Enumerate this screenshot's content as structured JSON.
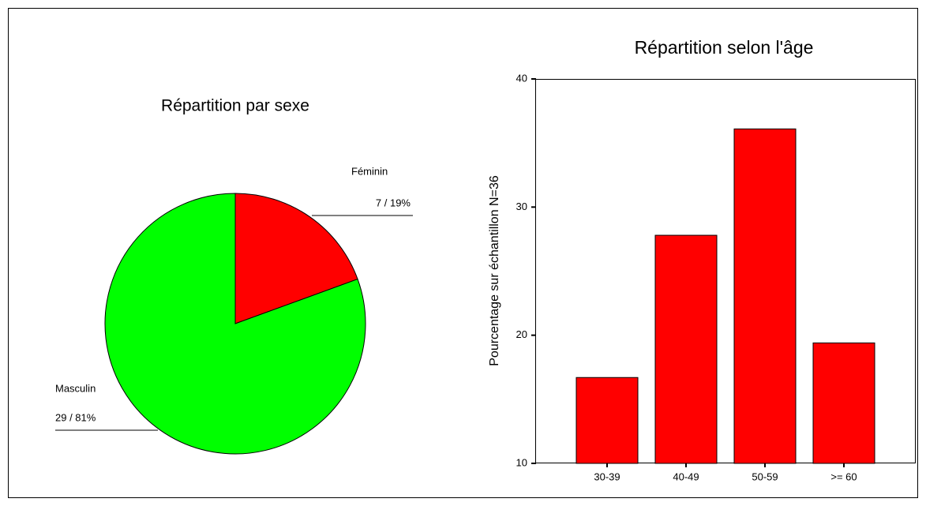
{
  "chart_data": [
    {
      "type": "pie",
      "title": "Répartition par sexe",
      "categories": [
        "Féminin",
        "Masculin"
      ],
      "values": [
        7,
        29
      ],
      "value_labels": [
        "7 / 19%",
        "29 / 81%"
      ],
      "colors": [
        "#ff0000",
        "#00ff00"
      ]
    },
    {
      "type": "bar",
      "title": "Répartition selon l'âge",
      "y_label": "Pourcentage sur échantillon N=36",
      "categories": [
        "30-39",
        "40-49",
        "50-59",
        ">= 60"
      ],
      "values": [
        16.7,
        27.8,
        36.1,
        19.4
      ],
      "color": "#ff0000",
      "ylim": [
        10,
        40
      ],
      "yticks": [
        10,
        20,
        30,
        40
      ]
    }
  ]
}
